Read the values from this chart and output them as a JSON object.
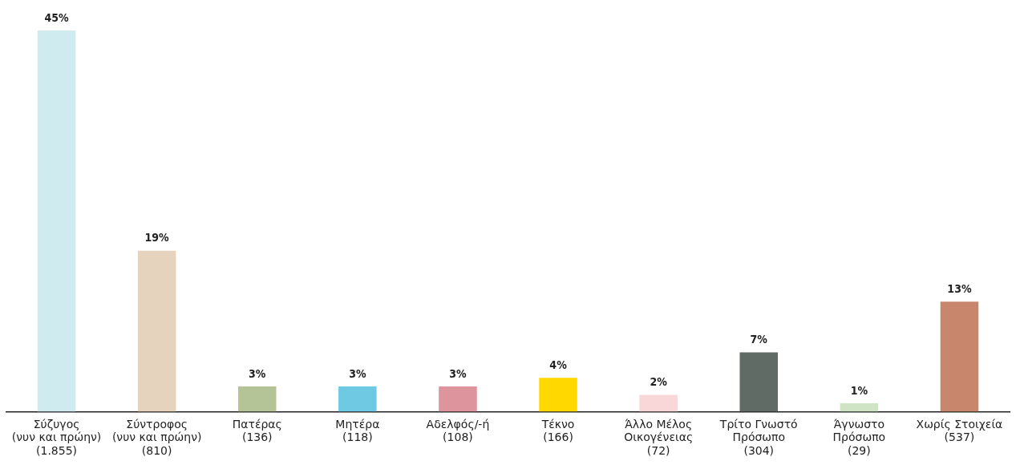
{
  "chart_data": {
    "type": "bar",
    "categories": [
      "Σύζυγος\n(νυν και πρώην)\n(1.855)",
      "Σύντροφος\n(νυν και πρώην)\n(810)",
      "Πατέρας\n(136)",
      "Μητέρα\n(118)",
      "Αδελφός/-ή\n(108)",
      "Τέκνο\n(166)",
      "Άλλο Μέλος\nΟικογένειας\n(72)",
      "Τρίτο Γνωστό\nΠρόσωπο\n(304)",
      "Άγνωστο\nΠρόσωπο\n(29)",
      "Χωρίς Στοιχεία\n(537)"
    ],
    "values": [
      45,
      19,
      3,
      3,
      3,
      4,
      2,
      7,
      1,
      13
    ],
    "value_labels": [
      "45%",
      "19%",
      "3%",
      "3%",
      "3%",
      "4%",
      "2%",
      "7%",
      "1%",
      "13%"
    ],
    "colors": [
      "#d0ebf0",
      "#e5d3bd",
      "#b5c496",
      "#6fc9e2",
      "#dd949c",
      "#ffd800",
      "#f9d6d8",
      "#616b66",
      "#cfe4c4",
      "#c8876c"
    ],
    "grid": false,
    "legend": false,
    "tick_labels": "x"
  }
}
